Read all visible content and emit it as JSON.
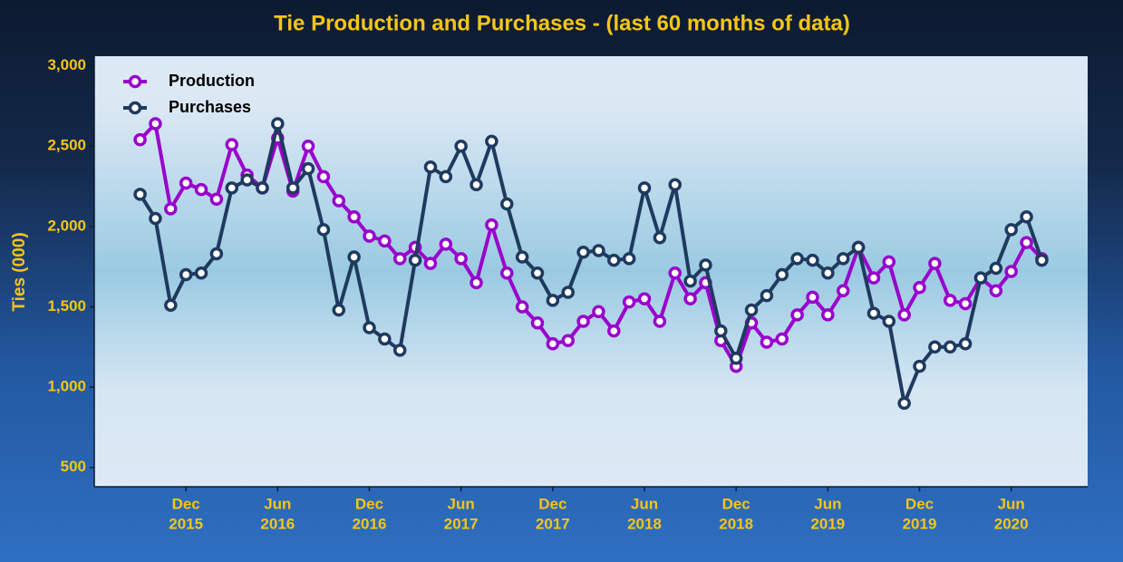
{
  "chart_data": {
    "type": "line",
    "title": "Tie Production and Purchases - (last 60 months of data)",
    "y_label": "Ties (000)",
    "x": [
      "2015-09",
      "2015-10",
      "2015-11",
      "2015-12",
      "2016-01",
      "2016-02",
      "2016-03",
      "2016-04",
      "2016-05",
      "2016-06",
      "2016-07",
      "2016-08",
      "2016-09",
      "2016-10",
      "2016-11",
      "2016-12",
      "2017-01",
      "2017-02",
      "2017-03",
      "2017-04",
      "2017-05",
      "2017-06",
      "2017-07",
      "2017-08",
      "2017-09",
      "2017-10",
      "2017-11",
      "2017-12",
      "2018-01",
      "2018-02",
      "2018-03",
      "2018-04",
      "2018-05",
      "2018-06",
      "2018-07",
      "2018-08",
      "2018-09",
      "2018-10",
      "2018-11",
      "2018-12",
      "2019-01",
      "2019-02",
      "2019-03",
      "2019-04",
      "2019-05",
      "2019-06",
      "2019-07",
      "2019-08",
      "2019-09",
      "2019-10",
      "2019-11",
      "2019-12",
      "2020-01",
      "2020-02",
      "2020-03",
      "2020-04",
      "2020-05",
      "2020-06",
      "2020-07",
      "2020-08"
    ],
    "series": [
      {
        "name": "Production",
        "color": "#9900cc",
        "values": [
          2540,
          2640,
          2110,
          2270,
          2230,
          2170,
          2510,
          2320,
          2240,
          2550,
          2220,
          2500,
          2310,
          2160,
          2060,
          1940,
          1910,
          1800,
          1870,
          1770,
          1890,
          1800,
          1650,
          2010,
          1710,
          1500,
          1400,
          1270,
          1290,
          1410,
          1470,
          1350,
          1530,
          1550,
          1410,
          1710,
          1550,
          1650,
          1290,
          1130,
          1400,
          1280,
          1300,
          1450,
          1560,
          1450,
          1600,
          1870,
          1680,
          1780,
          1450,
          1620,
          1770,
          1540,
          1520,
          1680,
          1600,
          1720,
          1900,
          1800
        ]
      },
      {
        "name": "Purchases",
        "color": "#1f3a5f",
        "values": [
          2200,
          2050,
          1510,
          1700,
          1710,
          1830,
          2240,
          2290,
          2240,
          2640,
          2240,
          2360,
          1980,
          1480,
          1810,
          1370,
          1300,
          1230,
          1790,
          2370,
          2310,
          2500,
          2260,
          2530,
          2140,
          1810,
          1710,
          1540,
          1590,
          1840,
          1850,
          1790,
          1800,
          2240,
          1930,
          2260,
          1660,
          1760,
          1350,
          1180,
          1480,
          1570,
          1700,
          1800,
          1790,
          1710,
          1800,
          1870,
          1460,
          1410,
          900,
          1130,
          1250,
          1250,
          1270,
          1680,
          1740,
          1980,
          2060,
          1790
        ]
      }
    ],
    "xlim": [
      "2015-06",
      "2020-11"
    ],
    "xticks": [
      {
        "value": "2015-12",
        "label": [
          "Dec",
          "2015"
        ]
      },
      {
        "value": "2016-06",
        "label": [
          "Jun",
          "2016"
        ]
      },
      {
        "value": "2016-12",
        "label": [
          "Dec",
          "2016"
        ]
      },
      {
        "value": "2017-06",
        "label": [
          "Jun",
          "2017"
        ]
      },
      {
        "value": "2017-12",
        "label": [
          "Dec",
          "2017"
        ]
      },
      {
        "value": "2018-06",
        "label": [
          "Jun",
          "2018"
        ]
      },
      {
        "value": "2018-12",
        "label": [
          "Dec",
          "2018"
        ]
      },
      {
        "value": "2019-06",
        "label": [
          "Jun",
          "2019"
        ]
      },
      {
        "value": "2019-12",
        "label": [
          "Dec",
          "2019"
        ]
      },
      {
        "value": "2020-06",
        "label": [
          "Jun",
          "2020"
        ]
      }
    ],
    "ylim": [
      380,
      3060
    ],
    "yticks": [
      {
        "value": 500,
        "label": "500"
      },
      {
        "value": 1000,
        "label": "1,000"
      },
      {
        "value": 1500,
        "label": "1,500"
      },
      {
        "value": 2000,
        "label": "2,000"
      },
      {
        "value": 2500,
        "label": "2,500"
      },
      {
        "value": 3000,
        "label": "3,000"
      }
    ],
    "grid": false,
    "legend": "top-left"
  }
}
